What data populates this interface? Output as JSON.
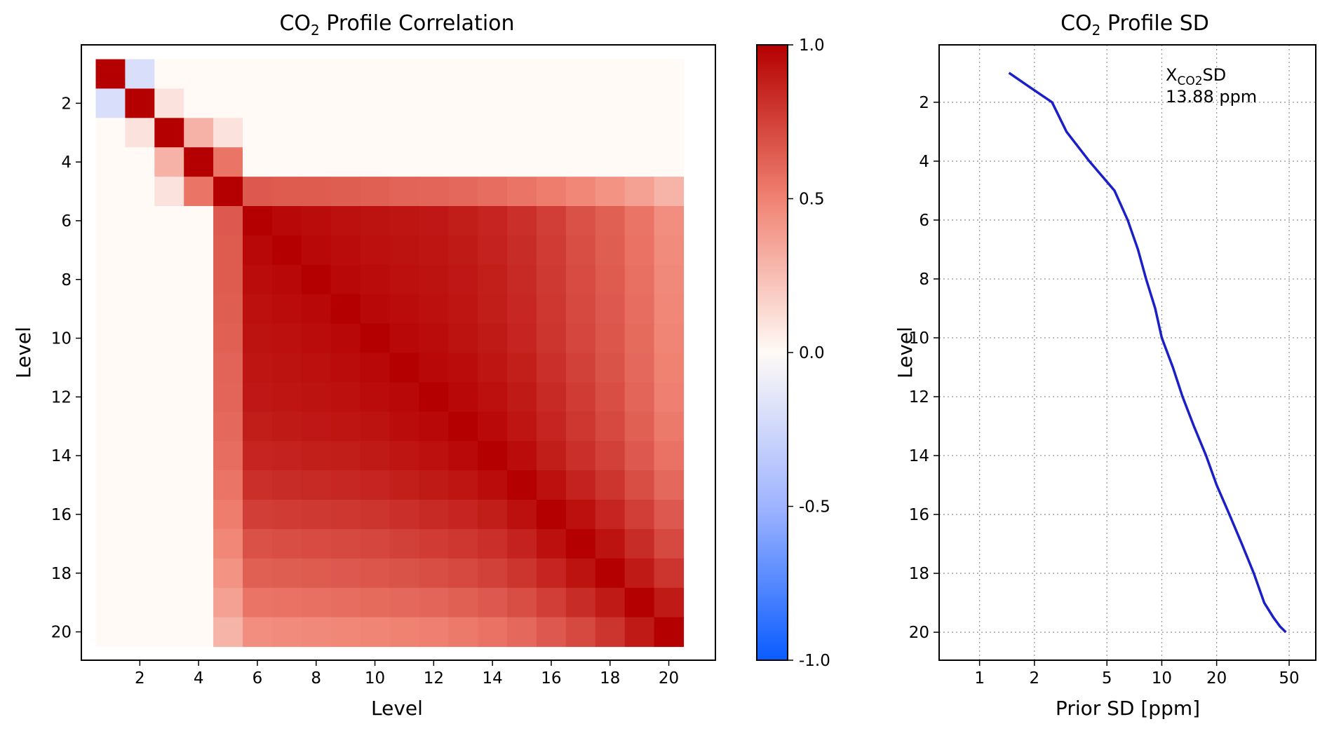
{
  "figure": {
    "heatmap": {
      "title_main": "CO",
      "title_sub": "2",
      "title_rest": " Profile Correlation",
      "xlabel": "Level",
      "ylabel": "Level",
      "xticks": [
        "2",
        "4",
        "6",
        "8",
        "10",
        "12",
        "14",
        "16",
        "18",
        "20"
      ],
      "yticks": [
        "2",
        "4",
        "6",
        "8",
        "10",
        "12",
        "14",
        "16",
        "18",
        "20"
      ]
    },
    "colorbar": {
      "ticks": [
        "1.0",
        "0.5",
        "0.0",
        "-0.5",
        "-1.0"
      ],
      "colors": {
        "neg": "#0a5cff",
        "mid": "#fffaf6",
        "pos": "#b40000"
      }
    },
    "profile": {
      "title_main": "CO",
      "title_sub": "2",
      "title_rest": " Profile SD",
      "xlabel": "Prior SD [ppm]",
      "ylabel": "Level",
      "xticks": [
        "1",
        "2",
        "5",
        "10",
        "20",
        "50"
      ],
      "yticks": [
        "2",
        "4",
        "6",
        "8",
        "10",
        "12",
        "14",
        "16",
        "18",
        "20"
      ],
      "annotation_main": "X",
      "annotation_sub": "CO2",
      "annotation_rest": "SD",
      "annotation_value": "13.88 ppm",
      "line_color": "#1b1fc7"
    }
  },
  "chart_data": [
    {
      "type": "heatmap",
      "title": "CO2 Profile Correlation",
      "xlabel": "Level",
      "ylabel": "Level",
      "x": [
        1,
        2,
        3,
        4,
        5,
        6,
        7,
        8,
        9,
        10,
        11,
        12,
        13,
        14,
        15,
        16,
        17,
        18,
        19,
        20
      ],
      "y": [
        1,
        2,
        3,
        4,
        5,
        6,
        7,
        8,
        9,
        10,
        11,
        12,
        13,
        14,
        15,
        16,
        17,
        18,
        19,
        20
      ],
      "vmin": -1.0,
      "vmax": 1.0,
      "colormap": "coolwarm-like (blue -1.0, white 0.0, red 1.0)",
      "values": [
        [
          1.0,
          -0.2,
          0,
          0,
          0,
          0,
          0,
          0,
          0,
          0,
          0,
          0,
          0,
          0,
          0,
          0,
          0,
          0,
          0,
          0
        ],
        [
          -0.2,
          1.0,
          0.1,
          0,
          0,
          0,
          0,
          0,
          0,
          0,
          0,
          0,
          0,
          0,
          0,
          0,
          0,
          0,
          0,
          0
        ],
        [
          0,
          0.1,
          1.0,
          0.3,
          0.1,
          0,
          0,
          0,
          0,
          0,
          0,
          0,
          0,
          0,
          0,
          0,
          0,
          0,
          0,
          0
        ],
        [
          0,
          0,
          0.3,
          1.0,
          0.55,
          0,
          0,
          0,
          0,
          0,
          0,
          0,
          0,
          0,
          0,
          0,
          0,
          0,
          0,
          0
        ],
        [
          0,
          0,
          0.1,
          0.55,
          1.0,
          0.66,
          0.65,
          0.65,
          0.64,
          0.63,
          0.62,
          0.61,
          0.6,
          0.58,
          0.55,
          0.52,
          0.48,
          0.43,
          0.37,
          0.29
        ],
        [
          0,
          0,
          0,
          0,
          0.66,
          1.0,
          0.97,
          0.95,
          0.94,
          0.93,
          0.92,
          0.91,
          0.89,
          0.86,
          0.82,
          0.76,
          0.69,
          0.63,
          0.55,
          0.45
        ],
        [
          0,
          0,
          0,
          0,
          0.65,
          0.97,
          1.0,
          0.97,
          0.95,
          0.94,
          0.93,
          0.92,
          0.9,
          0.87,
          0.83,
          0.77,
          0.7,
          0.64,
          0.56,
          0.46
        ],
        [
          0,
          0,
          0,
          0,
          0.65,
          0.95,
          0.97,
          1.0,
          0.97,
          0.95,
          0.94,
          0.93,
          0.91,
          0.88,
          0.84,
          0.78,
          0.71,
          0.65,
          0.57,
          0.47
        ],
        [
          0,
          0,
          0,
          0,
          0.64,
          0.94,
          0.95,
          0.97,
          1.0,
          0.97,
          0.95,
          0.94,
          0.92,
          0.89,
          0.85,
          0.79,
          0.72,
          0.66,
          0.58,
          0.48
        ],
        [
          0,
          0,
          0,
          0,
          0.63,
          0.93,
          0.94,
          0.95,
          0.97,
          1.0,
          0.97,
          0.95,
          0.93,
          0.9,
          0.86,
          0.8,
          0.73,
          0.67,
          0.59,
          0.49
        ],
        [
          0,
          0,
          0,
          0,
          0.62,
          0.92,
          0.93,
          0.94,
          0.95,
          0.97,
          1.0,
          0.97,
          0.95,
          0.92,
          0.88,
          0.82,
          0.75,
          0.68,
          0.6,
          0.5
        ],
        [
          0,
          0,
          0,
          0,
          0.61,
          0.91,
          0.92,
          0.93,
          0.94,
          0.95,
          0.97,
          1.0,
          0.97,
          0.94,
          0.9,
          0.84,
          0.77,
          0.7,
          0.61,
          0.51
        ],
        [
          0,
          0,
          0,
          0,
          0.6,
          0.89,
          0.9,
          0.91,
          0.92,
          0.93,
          0.95,
          0.97,
          1.0,
          0.96,
          0.92,
          0.86,
          0.79,
          0.72,
          0.63,
          0.53
        ],
        [
          0,
          0,
          0,
          0,
          0.58,
          0.86,
          0.87,
          0.88,
          0.89,
          0.9,
          0.92,
          0.94,
          0.96,
          1.0,
          0.95,
          0.89,
          0.82,
          0.75,
          0.66,
          0.56
        ],
        [
          0,
          0,
          0,
          0,
          0.55,
          0.82,
          0.83,
          0.84,
          0.85,
          0.86,
          0.88,
          0.9,
          0.92,
          0.95,
          1.0,
          0.94,
          0.87,
          0.8,
          0.7,
          0.6
        ],
        [
          0,
          0,
          0,
          0,
          0.52,
          0.76,
          0.77,
          0.78,
          0.79,
          0.8,
          0.82,
          0.84,
          0.86,
          0.89,
          0.94,
          1.0,
          0.94,
          0.86,
          0.76,
          0.66
        ],
        [
          0,
          0,
          0,
          0,
          0.48,
          0.69,
          0.7,
          0.71,
          0.72,
          0.73,
          0.75,
          0.77,
          0.79,
          0.82,
          0.87,
          0.94,
          1.0,
          0.93,
          0.83,
          0.72
        ],
        [
          0,
          0,
          0,
          0,
          0.43,
          0.63,
          0.64,
          0.65,
          0.66,
          0.67,
          0.68,
          0.7,
          0.72,
          0.75,
          0.8,
          0.86,
          0.93,
          1.0,
          0.9,
          0.8
        ],
        [
          0,
          0,
          0,
          0,
          0.37,
          0.55,
          0.56,
          0.57,
          0.58,
          0.59,
          0.6,
          0.61,
          0.63,
          0.66,
          0.7,
          0.76,
          0.83,
          0.9,
          1.0,
          0.9
        ],
        [
          0,
          0,
          0,
          0,
          0.29,
          0.45,
          0.46,
          0.47,
          0.48,
          0.49,
          0.5,
          0.51,
          0.53,
          0.56,
          0.6,
          0.66,
          0.72,
          0.8,
          0.9,
          1.0
        ]
      ],
      "colorbar_ticks": [
        1.0,
        0.5,
        0.0,
        -0.5,
        -1.0
      ]
    },
    {
      "type": "line",
      "title": "CO2 Profile SD",
      "xlabel": "Prior SD [ppm]",
      "ylabel": "Level",
      "xscale": "log",
      "xlim": [
        0.6,
        70
      ],
      "ylim": [
        20.95,
        0.05
      ],
      "grid": true,
      "series": [
        {
          "x": [
            1.45,
            1.9,
            2.5,
            3.0,
            4.0,
            5.5,
            6.5,
            7.4,
            8.2,
            9.2,
            10.0,
            11.5,
            13.0,
            15.0,
            17.5,
            20.0,
            23.5,
            27.5,
            32.0,
            36.5,
            41.0,
            44.5,
            48.0
          ],
          "y": [
            1,
            1.5,
            2,
            3,
            4,
            5,
            6,
            7,
            8,
            9,
            10,
            11,
            12,
            13,
            14,
            15,
            16,
            17,
            18,
            19,
            19.5,
            19.8,
            20
          ]
        }
      ],
      "annotations": [
        "XCO2SD",
        "13.88 ppm"
      ]
    }
  ]
}
